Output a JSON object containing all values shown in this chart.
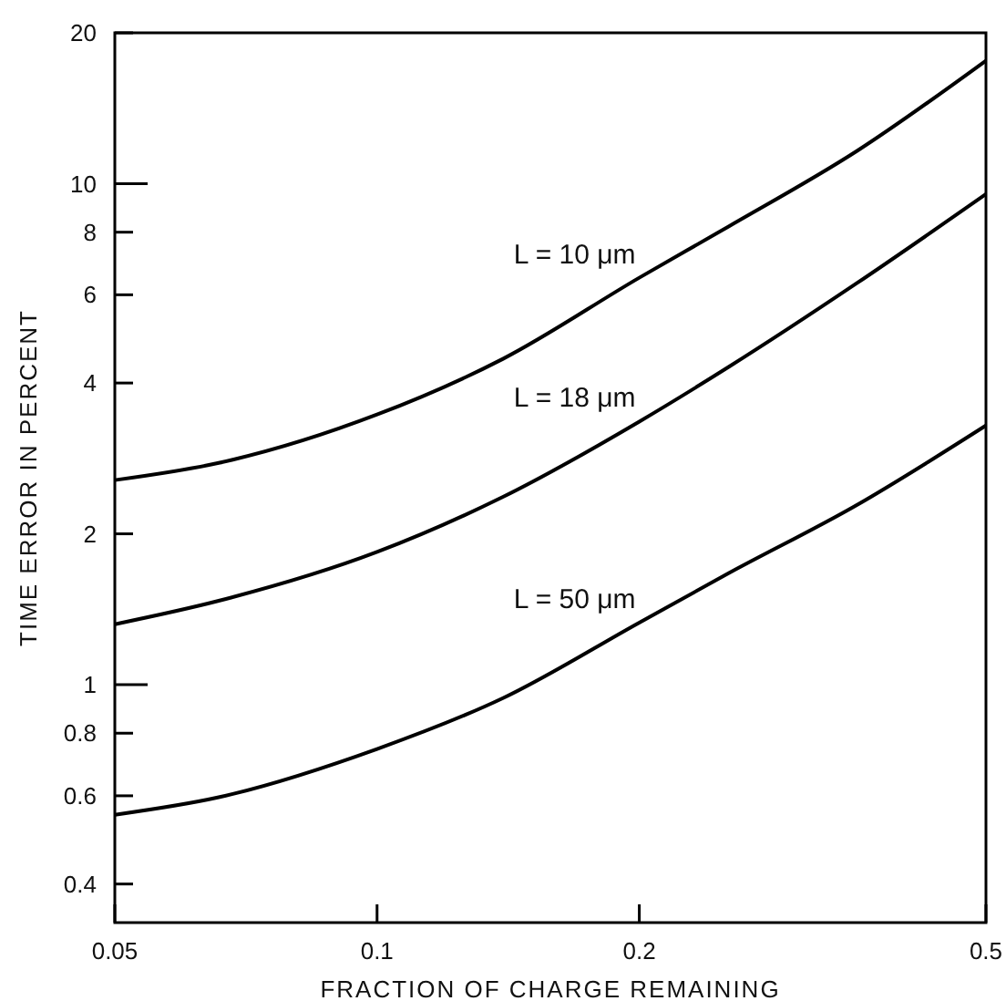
{
  "chart_data": {
    "type": "line",
    "xlabel": "FRACTION OF CHARGE REMAINING",
    "ylabel": "TIME ERROR IN PERCENT",
    "log": "xy",
    "grid": false,
    "legend": false,
    "marker": "none",
    "line_style": "solid",
    "xlim": [
      0.05,
      0.5
    ],
    "xticks": [
      0.05,
      0.1,
      0.2,
      0.5
    ],
    "ylim": [
      0.335,
      20
    ],
    "yticks": [
      0.4,
      0.6,
      0.8,
      1,
      2,
      4,
      6,
      8,
      10,
      20
    ],
    "x": [
      0.05,
      0.0658,
      0.1,
      0.1395,
      0.2,
      0.2535,
      0.355,
      0.5
    ],
    "series": [
      {
        "name": "L = 10 μm",
        "color": "#000000",
        "values": [
          2.56,
          2.77,
          3.46,
          4.47,
          6.49,
          8.22,
          11.6,
          17.6
        ]
      },
      {
        "name": "L = 18 μm",
        "color": "#000000",
        "values": [
          1.32,
          1.47,
          1.84,
          2.37,
          3.35,
          4.31,
          6.32,
          9.53
        ]
      },
      {
        "name": "L = 50 μm",
        "color": "#000000",
        "values": [
          0.55,
          0.596,
          0.744,
          0.94,
          1.33,
          1.67,
          2.28,
          3.29
        ]
      }
    ]
  }
}
